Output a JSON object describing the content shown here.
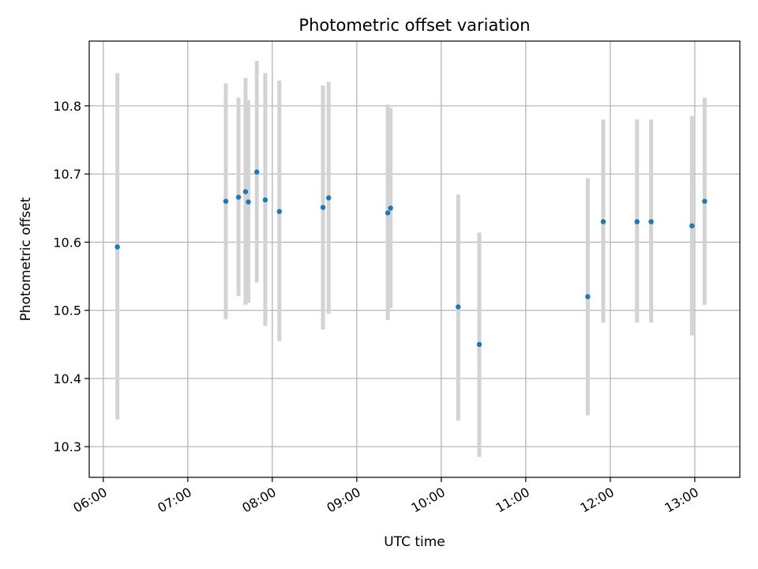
{
  "chart_data": {
    "type": "scatter",
    "title": "Photometric offset variation",
    "xlabel": "UTC time",
    "ylabel": "Photometric offset",
    "x_is_time": true,
    "xlim": [
      "05:50",
      "13:32"
    ],
    "ylim": [
      10.255,
      10.895
    ],
    "x_ticks": [
      "06:00",
      "07:00",
      "08:00",
      "09:00",
      "10:00",
      "11:00",
      "12:00",
      "13:00"
    ],
    "y_ticks": [
      10.3,
      10.4,
      10.5,
      10.6,
      10.7,
      10.8
    ],
    "y_tick_labels": [
      "10.3",
      "10.4",
      "10.5",
      "10.6",
      "10.7",
      "10.8"
    ],
    "grid": true,
    "marker_color": "#1f77b4",
    "errorbar_color": "#d3d3d3",
    "points": [
      {
        "t": "06:10",
        "y": 10.593,
        "lo": 10.34,
        "hi": 10.848
      },
      {
        "t": "07:27",
        "y": 10.66,
        "lo": 10.487,
        "hi": 10.833
      },
      {
        "t": "07:36",
        "y": 10.666,
        "lo": 10.521,
        "hi": 10.812
      },
      {
        "t": "07:41",
        "y": 10.674,
        "lo": 10.508,
        "hi": 10.841
      },
      {
        "t": "07:43",
        "y": 10.659,
        "lo": 10.511,
        "hi": 10.808
      },
      {
        "t": "07:49",
        "y": 10.703,
        "lo": 10.541,
        "hi": 10.866
      },
      {
        "t": "07:55",
        "y": 10.662,
        "lo": 10.477,
        "hi": 10.848
      },
      {
        "t": "08:05",
        "y": 10.645,
        "lo": 10.455,
        "hi": 10.837
      },
      {
        "t": "08:36",
        "y": 10.651,
        "lo": 10.472,
        "hi": 10.83
      },
      {
        "t": "08:40",
        "y": 10.665,
        "lo": 10.495,
        "hi": 10.835
      },
      {
        "t": "09:22",
        "y": 10.643,
        "lo": 10.486,
        "hi": 10.802
      },
      {
        "t": "09:24",
        "y": 10.65,
        "lo": 10.503,
        "hi": 10.797
      },
      {
        "t": "10:12",
        "y": 10.505,
        "lo": 10.338,
        "hi": 10.67
      },
      {
        "t": "10:27",
        "y": 10.45,
        "lo": 10.285,
        "hi": 10.614
      },
      {
        "t": "11:44",
        "y": 10.52,
        "lo": 10.346,
        "hi": 10.694
      },
      {
        "t": "11:55",
        "y": 10.63,
        "lo": 10.482,
        "hi": 10.78
      },
      {
        "t": "12:19",
        "y": 10.63,
        "lo": 10.482,
        "hi": 10.78
      },
      {
        "t": "12:29",
        "y": 10.63,
        "lo": 10.482,
        "hi": 10.78
      },
      {
        "t": "12:58",
        "y": 10.624,
        "lo": 10.463,
        "hi": 10.785
      },
      {
        "t": "13:07",
        "y": 10.66,
        "lo": 10.508,
        "hi": 10.812
      }
    ]
  }
}
